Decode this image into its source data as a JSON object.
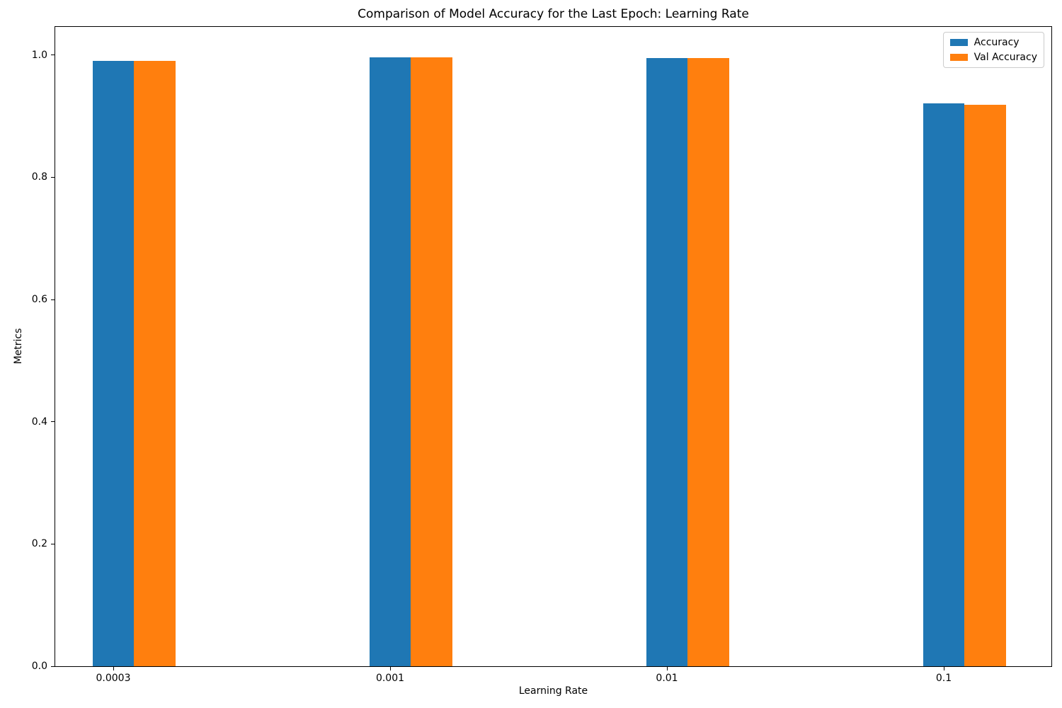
{
  "chart_data": {
    "type": "bar",
    "title": "Comparison of Model Accuracy for the Last Epoch: Learning Rate",
    "xlabel": "Learning Rate",
    "ylabel": "Metrics",
    "categories": [
      "0.0003",
      "0.001",
      "0.01",
      "0.1"
    ],
    "series": [
      {
        "name": "Accuracy",
        "color": "#1f77b4",
        "values": [
          0.99,
          0.996,
          0.995,
          0.921
        ]
      },
      {
        "name": "Val Accuracy",
        "color": "#ff7f0e",
        "values": [
          0.99,
          0.996,
          0.995,
          0.919
        ]
      }
    ],
    "y_ticks": [
      0.0,
      0.2,
      0.4,
      0.6,
      0.8,
      1.0
    ],
    "ylim": [
      0,
      1.046
    ],
    "bar_width_units": 0.15,
    "grid": false,
    "legend_position": "upper right",
    "colors": {
      "spine": "#000000",
      "legend_border": "#cccccc",
      "background": "#ffffff"
    }
  }
}
